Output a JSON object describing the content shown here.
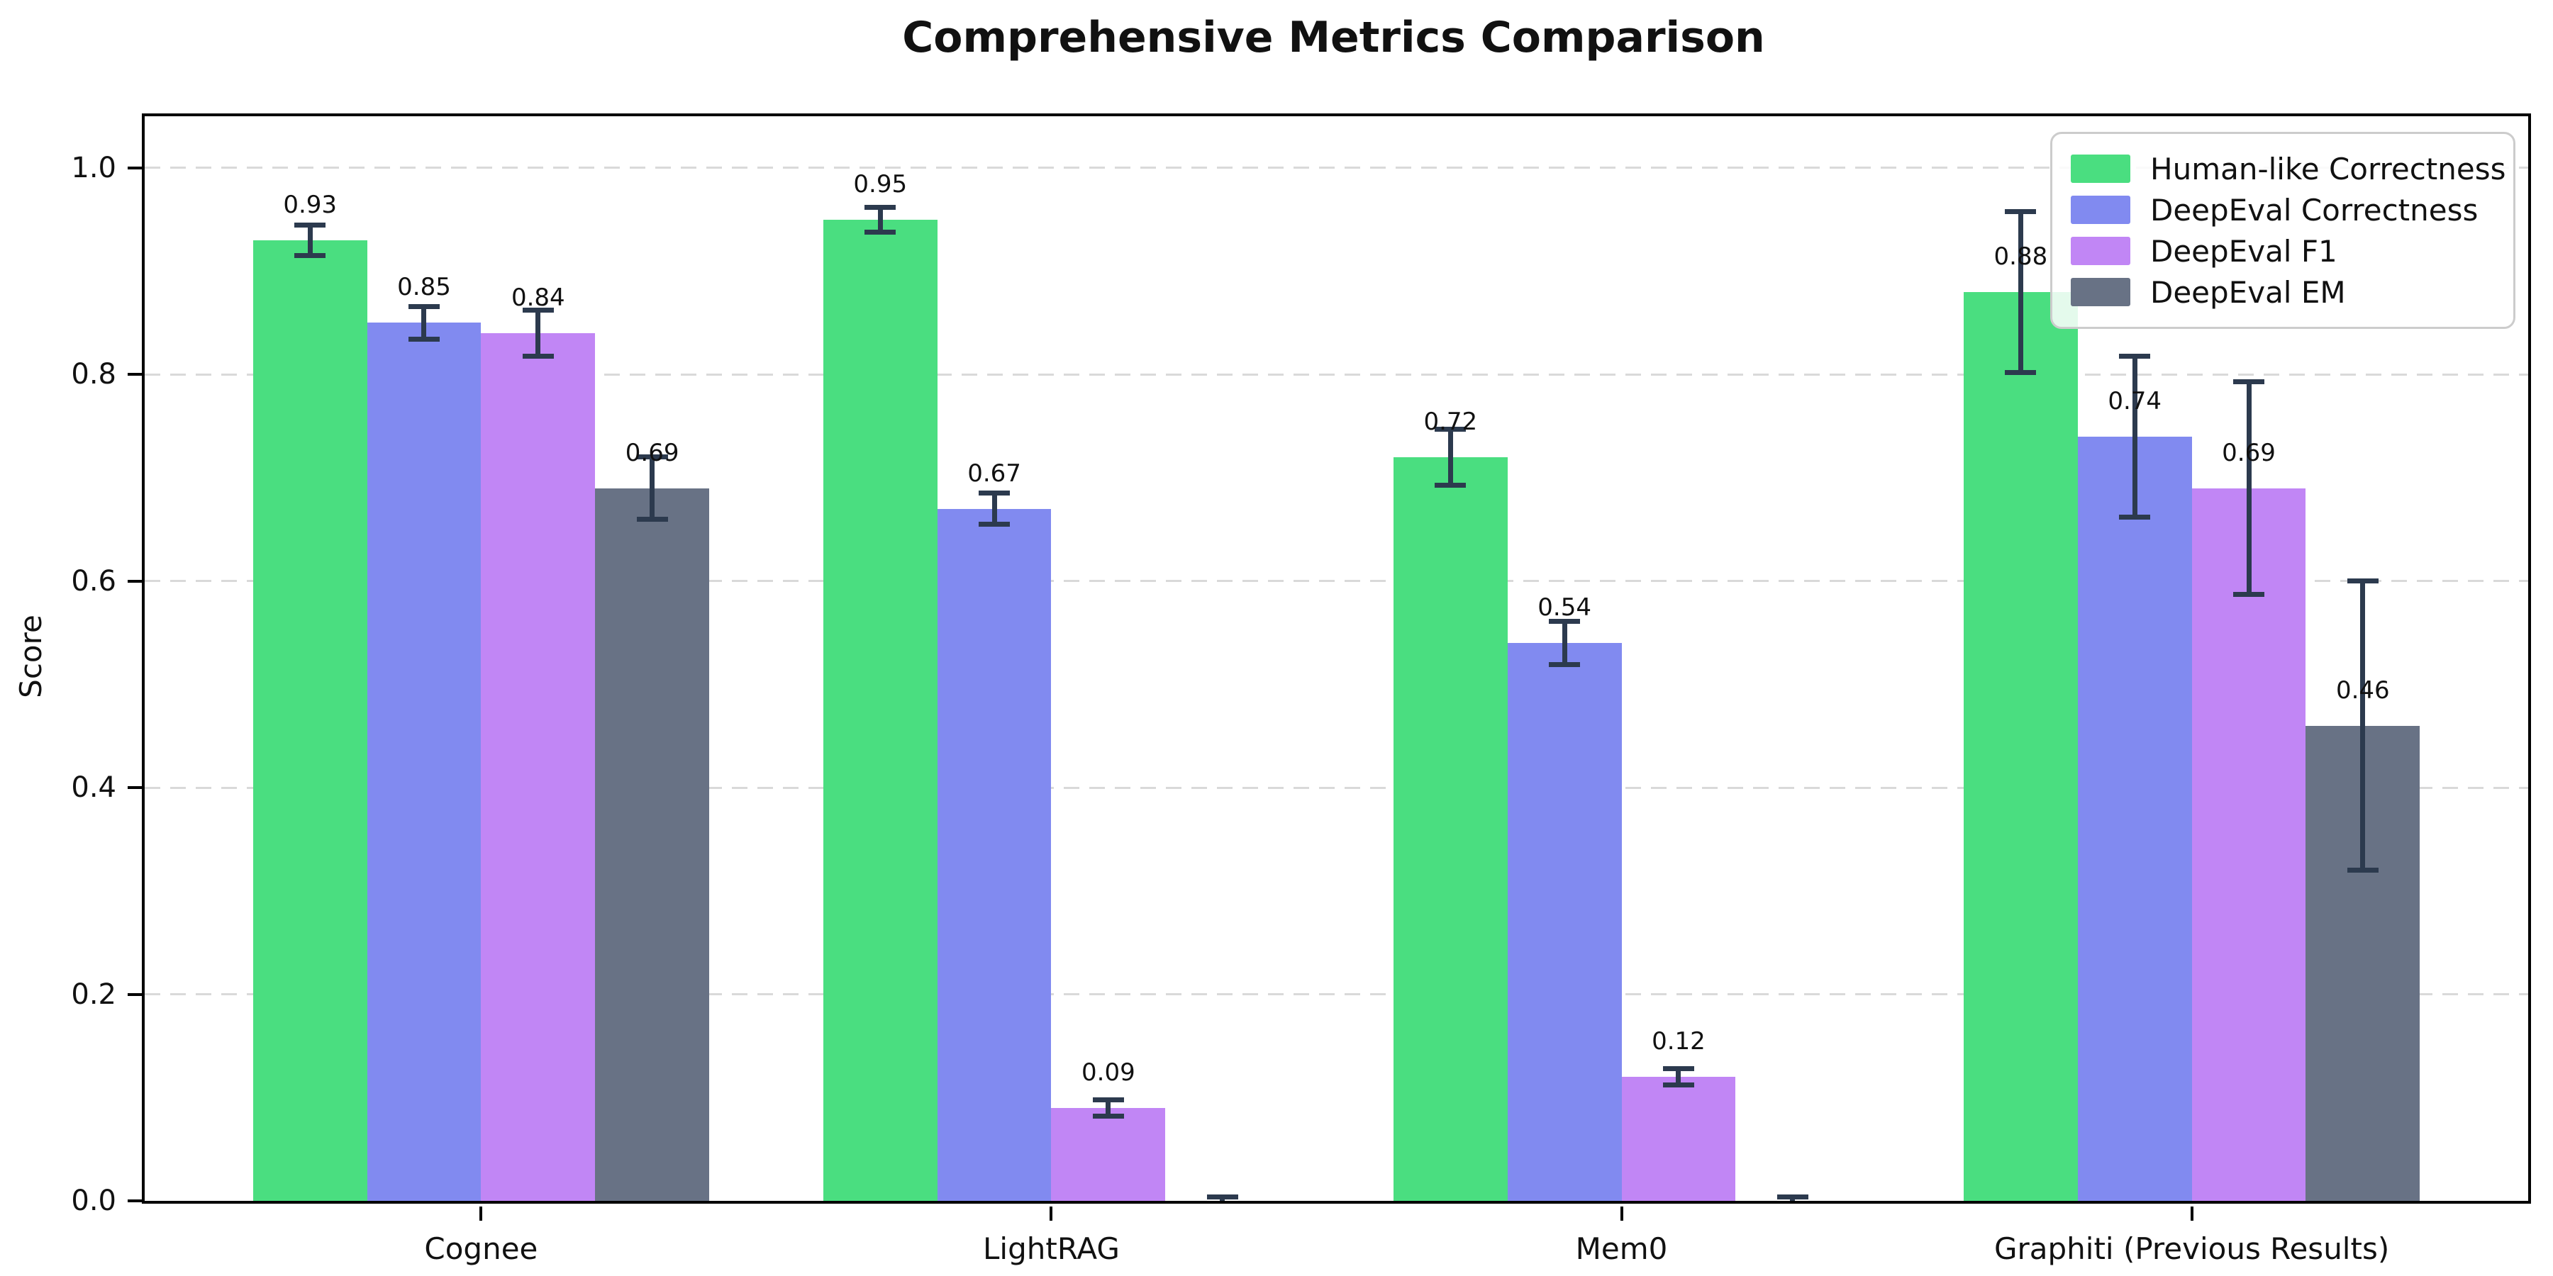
{
  "title": "Comprehensive Metrics Comparison",
  "chart_data": {
    "type": "bar",
    "title": "Comprehensive Metrics Comparison",
    "xlabel": "",
    "ylabel": "Score",
    "ylim": [
      0,
      1.05
    ],
    "grid": "horizontal-dashed",
    "legend_position": "upper-right",
    "y_ticks": [
      0.0,
      0.2,
      0.4,
      0.6,
      0.8,
      1.0
    ],
    "y_tick_labels": [
      "0.0",
      "0.2",
      "0.4",
      "0.6",
      "0.8",
      "1.0"
    ],
    "categories": [
      "Cognee",
      "LightRAG",
      "Mem0",
      "Graphiti (Previous Results)"
    ],
    "series": [
      {
        "name": "Human-like Correctness",
        "color": "#4ade80",
        "values": [
          0.93,
          0.95,
          0.72,
          0.88
        ],
        "errors": [
          0.015,
          0.012,
          0.027,
          0.078
        ],
        "labels": [
          "0.93",
          "0.95",
          "0.72",
          "0.88"
        ]
      },
      {
        "name": "DeepEval Correctness",
        "color": "#818af0",
        "values": [
          0.85,
          0.67,
          0.54,
          0.74
        ],
        "errors": [
          0.016,
          0.015,
          0.021,
          0.078
        ],
        "labels": [
          "0.85",
          "0.67",
          "0.54",
          "0.74"
        ]
      },
      {
        "name": "DeepEval F1",
        "color": "#c186f5",
        "values": [
          0.84,
          0.09,
          0.12,
          0.69
        ],
        "errors": [
          0.022,
          0.008,
          0.008,
          0.103
        ],
        "labels": [
          "0.84",
          "0.09",
          "0.12",
          "0.69"
        ]
      },
      {
        "name": "DeepEval EM",
        "color": "#687285",
        "values": [
          0.69,
          0.0,
          0.0,
          0.46
        ],
        "errors": [
          0.03,
          0.004,
          0.004,
          0.14
        ],
        "labels": [
          "0.69",
          null,
          null,
          "0.46"
        ]
      }
    ],
    "error_bar_color": "#2c3a4e",
    "colors": {
      "grid": "#d9d9d9",
      "legend_border": "#cccccc",
      "text": "#111111"
    }
  }
}
